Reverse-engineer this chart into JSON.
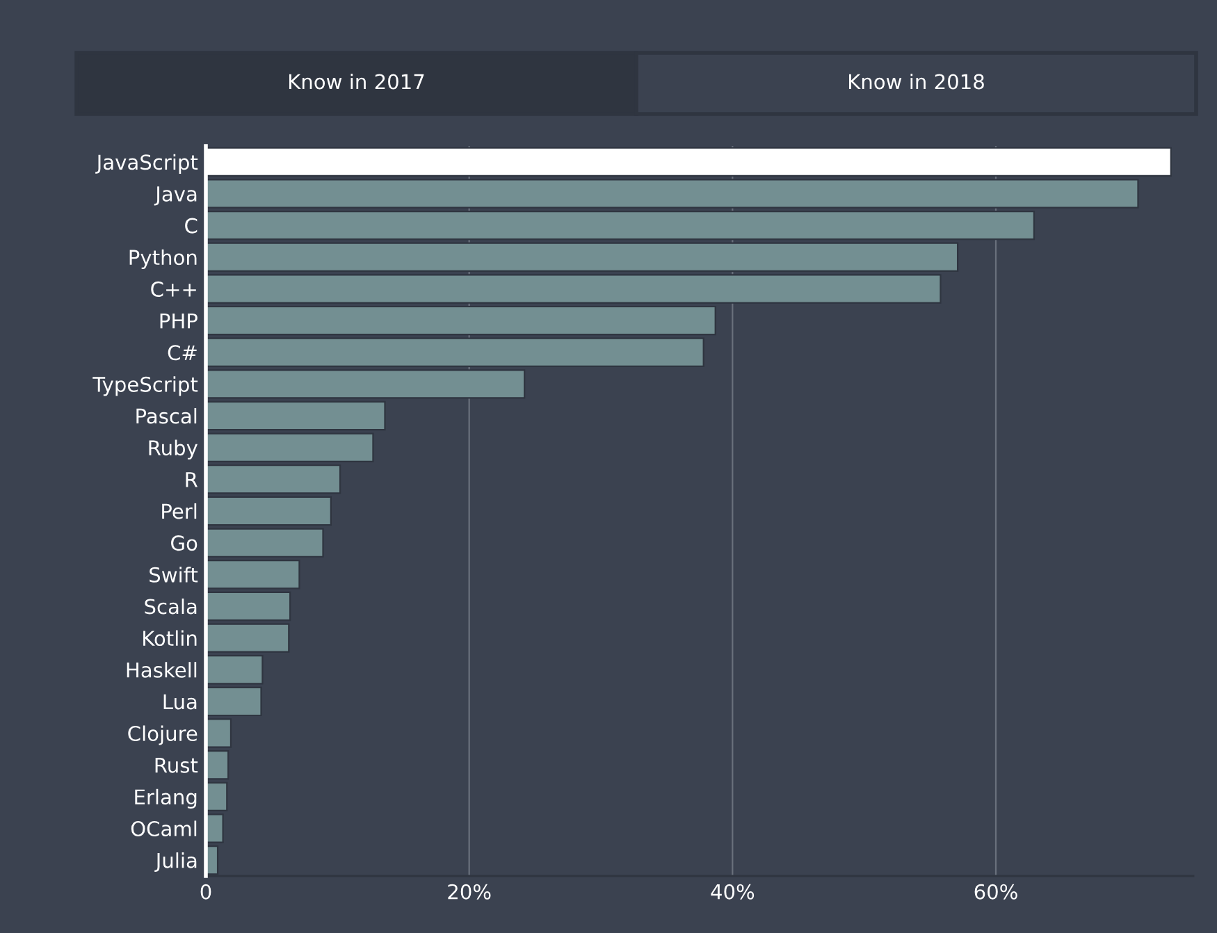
{
  "chart_data": {
    "type": "bar",
    "orientation": "horizontal",
    "annotations": [
      "Know in 2017",
      "Know in 2018"
    ],
    "categories": [
      "JavaScript",
      "Java",
      "C",
      "Python",
      "C++",
      "PHP",
      "C#",
      "TypeScript",
      "Pascal",
      "Ruby",
      "R",
      "Perl",
      "Go",
      "Swift",
      "Scala",
      "Kotlin",
      "Haskell",
      "Lua",
      "Clojure",
      "Rust",
      "Erlang",
      "OCaml",
      "Julia"
    ],
    "values": [
      73.3,
      70.8,
      62.9,
      57.1,
      55.8,
      38.7,
      37.8,
      24.2,
      13.6,
      12.7,
      10.2,
      9.5,
      8.9,
      7.1,
      6.4,
      6.3,
      4.3,
      4.2,
      1.9,
      1.7,
      1.6,
      1.3,
      0.9
    ],
    "colors": [
      "#ffffff",
      "#738f92",
      "#738f92",
      "#738f92",
      "#738f92",
      "#738f92",
      "#738f92",
      "#738f92",
      "#738f92",
      "#738f92",
      "#738f92",
      "#738f92",
      "#738f92",
      "#738f92",
      "#738f92",
      "#738f92",
      "#738f92",
      "#738f92",
      "#738f92",
      "#738f92",
      "#738f92",
      "#738f92",
      "#738f92"
    ],
    "xlim": [
      0,
      75
    ],
    "xticks": [
      0,
      {
        "value": 20,
        "label": "20%"
      },
      {
        "value": 40,
        "label": "40%"
      },
      {
        "value": 60,
        "label": "60%"
      }
    ],
    "grid": "x"
  }
}
